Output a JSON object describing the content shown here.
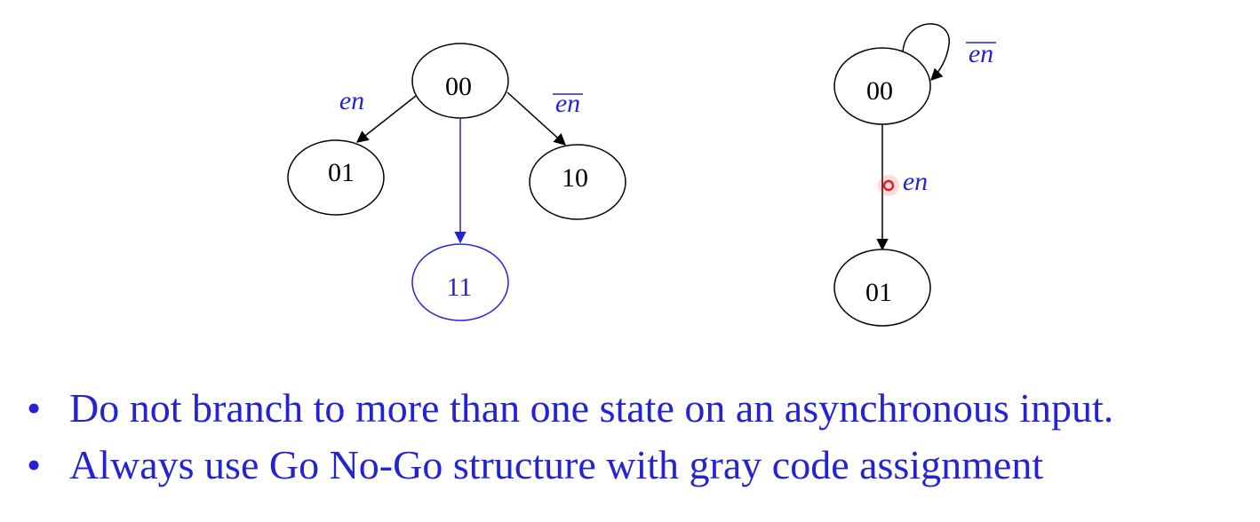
{
  "colors": {
    "accent": "#2323d6",
    "black": "#000000",
    "pointer": "#e02020"
  },
  "left_diagram": {
    "states": {
      "s00": "00",
      "s01": "01",
      "s10": "10",
      "s11": "11"
    },
    "edge_labels": {
      "en": "en",
      "en_bar": "en"
    }
  },
  "right_diagram": {
    "states": {
      "s00": "00",
      "s01": "01"
    },
    "edge_labels": {
      "en_bar": "en",
      "en": "en"
    }
  },
  "bullets": [
    {
      "marker": "•",
      "text": "Do not branch to more than one state on an asynchronous input."
    },
    {
      "marker": "•",
      "text": "Always use Go No-Go structure with gray code assignment"
    }
  ]
}
